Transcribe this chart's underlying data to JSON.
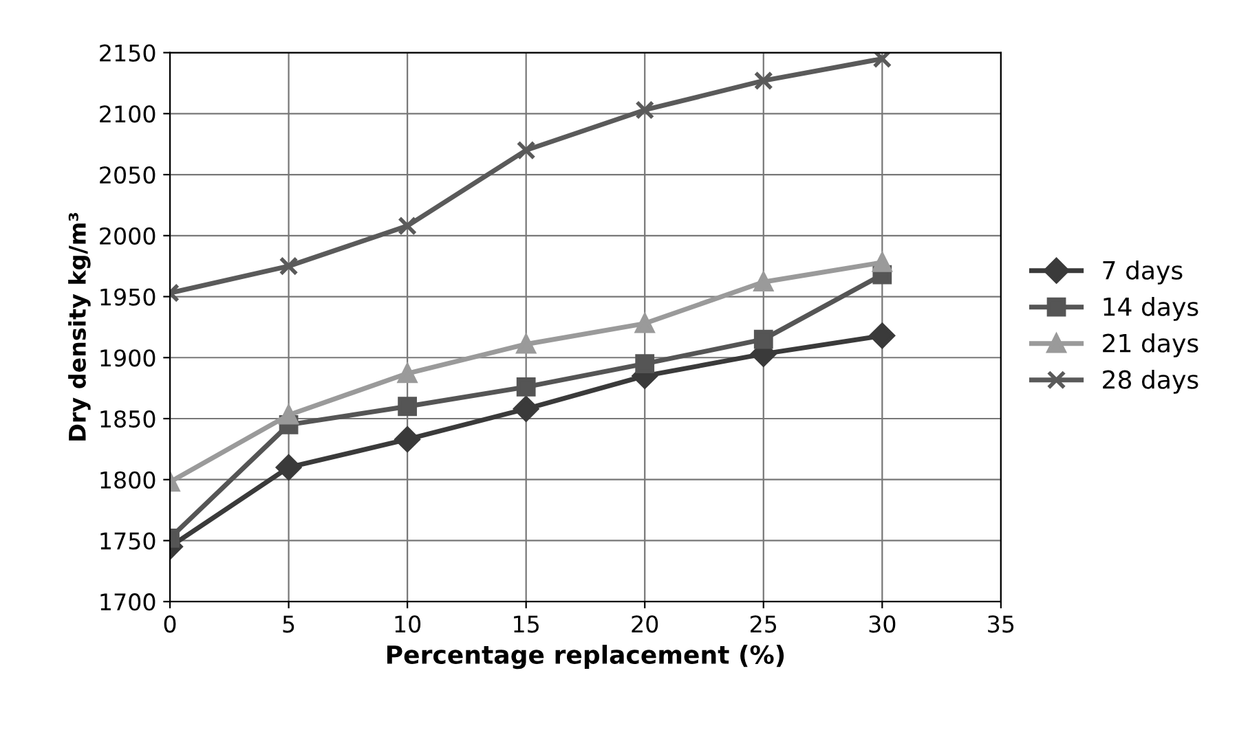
{
  "chart_data": {
    "type": "line",
    "xlabel": "Percentage replacement (%)",
    "ylabel": "Dry density kg/m³",
    "x": [
      0,
      5,
      10,
      15,
      20,
      25,
      30
    ],
    "series": [
      {
        "name": "7 days",
        "color": "#3a3a3a",
        "marker": "diamond",
        "values": [
          1745,
          1810,
          1833,
          1858,
          1885,
          1903,
          1918
        ]
      },
      {
        "name": "14 days",
        "color": "#555555",
        "marker": "square",
        "values": [
          1752,
          1845,
          1860,
          1876,
          1895,
          1915,
          1968
        ]
      },
      {
        "name": "21 days",
        "color": "#9a9a9a",
        "marker": "triangle",
        "values": [
          1798,
          1853,
          1887,
          1911,
          1928,
          1962,
          1978
        ]
      },
      {
        "name": "28 days",
        "color": "#5a5a5a",
        "marker": "cross",
        "values": [
          1953,
          1975,
          2008,
          2070,
          2103,
          2127,
          2145
        ]
      }
    ],
    "xlim": [
      0,
      35
    ],
    "xticks": [
      0,
      5,
      10,
      15,
      20,
      25,
      30,
      35
    ],
    "ylim": [
      1700,
      2150
    ],
    "yticks": [
      1700,
      1750,
      1800,
      1850,
      1900,
      1950,
      2000,
      2050,
      2100,
      2150
    ],
    "grid": true,
    "legend": "right",
    "line_style": "solid"
  }
}
